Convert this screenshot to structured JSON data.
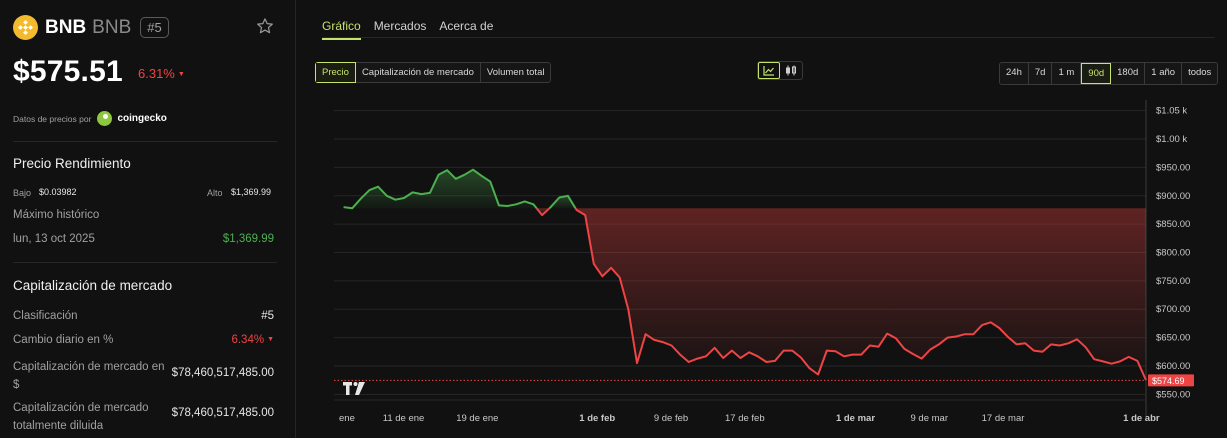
{
  "coin": {
    "name": "BNB",
    "symbol": "BNB",
    "rank": "#5",
    "price": "$575.51",
    "change_24h": "6.31%",
    "source_label": "Datos de precios por",
    "source_name": "coingecko"
  },
  "performance": {
    "title": "Precio Rendimiento",
    "low_label": "Bajo",
    "low_value": "$0.03982",
    "high_label": "Alto",
    "high_value": "$1,369.99",
    "ath_label": "Máximo histórico",
    "ath_date": "lun, 13 oct 2025",
    "ath_value": "$1,369.99"
  },
  "market_cap": {
    "title": "Capitalización de mercado",
    "rows": [
      {
        "label": "Clasificación",
        "value": "#5"
      },
      {
        "label": "Cambio diario en %",
        "value": "6.34%"
      },
      {
        "label": "Capitalización de mercado en $",
        "value": "$78,460,517,485.00"
      },
      {
        "label": "Capitalización de mercado totalmente diluida",
        "value": "$78,460,517,485.00"
      }
    ]
  },
  "tabs": [
    {
      "label": "Gráfico",
      "active": true
    },
    {
      "label": "Mercados",
      "active": false
    },
    {
      "label": "Acerca de",
      "active": false
    }
  ],
  "metric_buttons": [
    {
      "label": "Precio",
      "active": true
    },
    {
      "label": "Capitalización de mercado",
      "active": false
    },
    {
      "label": "Volumen total",
      "active": false
    }
  ],
  "range_buttons": [
    {
      "label": "24h",
      "active": false
    },
    {
      "label": "7d",
      "active": false
    },
    {
      "label": "1 m",
      "active": false
    },
    {
      "label": "90d",
      "active": true
    },
    {
      "label": "180d",
      "active": false
    },
    {
      "label": "1 año",
      "active": false
    },
    {
      "label": "todos",
      "active": false
    }
  ],
  "chart_icons": [
    {
      "name": "line-chart-icon",
      "active": true
    },
    {
      "name": "candlestick-icon",
      "active": false
    }
  ],
  "colors": {
    "accent": "#c6e36b",
    "up": "#4caf50",
    "down": "#ef4444",
    "background": "#111111"
  },
  "chart_data": {
    "type": "line",
    "ylim": [
      540,
      1060
    ],
    "baseline": 878,
    "current_price_label": "$574.69",
    "current_price": 574.69,
    "y_ticks": [
      {
        "value": 1050,
        "label": "$1.05 k"
      },
      {
        "value": 1000,
        "label": "$1.00 k"
      },
      {
        "value": 950,
        "label": "$950.00"
      },
      {
        "value": 900,
        "label": "$900.00"
      },
      {
        "value": 850,
        "label": "$850.00"
      },
      {
        "value": 800,
        "label": "$800.00"
      },
      {
        "value": 750,
        "label": "$750.00"
      },
      {
        "value": 700,
        "label": "$700.00"
      },
      {
        "value": 650,
        "label": "$650.00"
      },
      {
        "value": 600,
        "label": "$600.00"
      },
      {
        "value": 550,
        "label": "$550.00"
      }
    ],
    "x_ticks": [
      {
        "day": 0,
        "label": "ene",
        "bold": false
      },
      {
        "day": 7,
        "label": "11 de ene",
        "bold": false
      },
      {
        "day": 15,
        "label": "19 de ene",
        "bold": false
      },
      {
        "day": 28,
        "label": "1 de feb",
        "bold": true
      },
      {
        "day": 36,
        "label": "9 de feb",
        "bold": false
      },
      {
        "day": 44,
        "label": "17 de feb",
        "bold": false
      },
      {
        "day": 56,
        "label": "1 de mar",
        "bold": true
      },
      {
        "day": 64,
        "label": "9 de mar",
        "bold": false
      },
      {
        "day": 72,
        "label": "17 de mar",
        "bold": false
      },
      {
        "day": 87,
        "label": "1 de abr",
        "bold": true
      }
    ],
    "x_range": [
      0,
      87.5
    ],
    "values": [
      880,
      878,
      895,
      910,
      916,
      900,
      893,
      896,
      906,
      903,
      905,
      937,
      945,
      930,
      937,
      946,
      935,
      925,
      883,
      882,
      885,
      890,
      885,
      866,
      880,
      897,
      900,
      875,
      866,
      780,
      758,
      773,
      756,
      700,
      605,
      656,
      646,
      642,
      636,
      620,
      607,
      613,
      617,
      632,
      614,
      627,
      614,
      624,
      617,
      607,
      609,
      627,
      627,
      615,
      596,
      585,
      627,
      626,
      617,
      620,
      620,
      636,
      634,
      657,
      649,
      630,
      621,
      613,
      629,
      638,
      650,
      652,
      656,
      656,
      672,
      677,
      667,
      651,
      638,
      640,
      627,
      625,
      638,
      636,
      640,
      647,
      633,
      612,
      608,
      604,
      608,
      616,
      609,
      575
    ]
  }
}
